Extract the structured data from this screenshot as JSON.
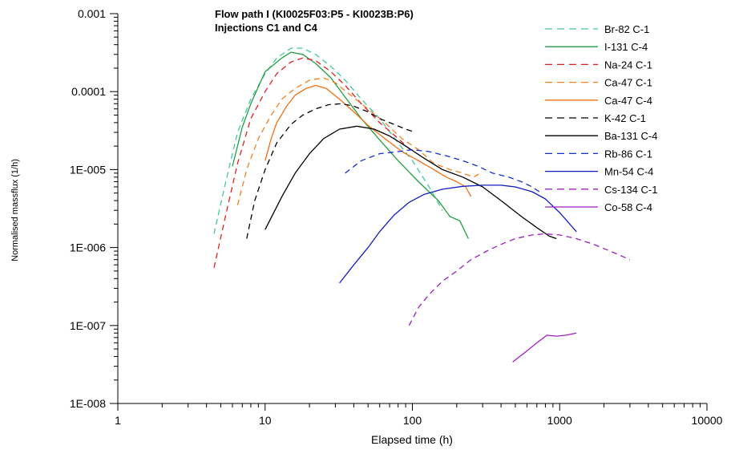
{
  "chart_data": {
    "type": "line",
    "title": "Flow path I (KI0025F03:P5 - KI0023B:P6)",
    "subtitle": "Injections C1 and C4",
    "xlabel": "Elapsed time (h)",
    "ylabel": "Normalised massflux (1/h)",
    "xscale": "log",
    "yscale": "log",
    "xlim": [
      1,
      10000
    ],
    "ylim": [
      1e-08,
      0.001
    ],
    "x_tick_labels": [
      "1",
      "10",
      "100",
      "1000",
      "10000"
    ],
    "y_tick_labels": [
      "1E-008",
      "1E-007",
      "1E-006",
      "1E-005",
      "0.0001",
      "0.001"
    ],
    "legend_position": "top-right",
    "grid": false,
    "series": [
      {
        "name": "Br-82 C-1",
        "color": "#40c8a0",
        "dash": "dashed",
        "x": [
          4.5,
          5.5,
          6.5,
          8,
          10,
          12,
          15,
          18,
          22,
          28,
          35,
          45,
          60,
          80,
          100,
          130,
          160
        ],
        "y": [
          1.5e-06,
          8e-06,
          3e-05,
          8e-05,
          0.00017,
          0.00027,
          0.00036,
          0.00036,
          0.0003,
          0.00021,
          0.00014,
          8e-05,
          4.5e-05,
          2.2e-05,
          1.3e-05,
          6e-06,
          3e-06
        ]
      },
      {
        "name": "I-131 C-4",
        "color": "#20a040",
        "dash": "solid",
        "x": [
          6,
          7,
          8,
          10,
          13,
          15,
          18,
          22,
          28,
          35,
          45,
          60,
          80,
          110,
          150,
          180,
          210,
          240
        ],
        "y": [
          1.1e-05,
          3.5e-05,
          7e-05,
          0.00018,
          0.00027,
          0.00032,
          0.0003,
          0.00023,
          0.00015,
          8.5e-05,
          4.5e-05,
          2.4e-05,
          1.3e-05,
          7e-06,
          4e-06,
          2.5e-06,
          2.2e-06,
          1.3e-06
        ]
      },
      {
        "name": "Na-24 C-1",
        "color": "#e02020",
        "dash": "dashed",
        "x": [
          4.5,
          5.5,
          6.5,
          8,
          10,
          12,
          15,
          18,
          22,
          28,
          35,
          45,
          60,
          80,
          100
        ],
        "y": [
          5.5e-07,
          3e-06,
          1.2e-05,
          4.5e-05,
          0.0001,
          0.00017,
          0.00024,
          0.00027,
          0.00025,
          0.00018,
          0.00012,
          7e-05,
          4e-05,
          2.5e-05,
          1.7e-05
        ]
      },
      {
        "name": "Ca-47 C-1",
        "color": "#f08020",
        "dash": "dashed",
        "x": [
          6.5,
          7.5,
          9,
          11,
          13,
          16,
          20,
          25,
          30,
          38,
          50,
          65,
          85,
          110,
          140,
          180,
          220,
          260,
          290
        ],
        "y": [
          3.5e-06,
          1e-05,
          2.5e-05,
          5e-05,
          8e-05,
          0.00011,
          0.00014,
          0.00015,
          0.00013,
          9e-05,
          6e-05,
          4e-05,
          2.5e-05,
          1.8e-05,
          1.2e-05,
          1e-05,
          9e-06,
          8e-06,
          9e-06
        ]
      },
      {
        "name": "Ca-47 C-4",
        "color": "#f07010",
        "dash": "solid",
        "x": [
          10,
          11,
          12,
          14,
          16,
          19,
          22,
          26,
          32,
          40,
          50,
          65,
          85,
          110,
          140,
          170,
          200,
          230,
          250
        ],
        "y": [
          1.3e-05,
          2.5e-05,
          4e-05,
          6.5e-05,
          9e-05,
          0.00011,
          0.00012,
          0.00011,
          8e-05,
          5.5e-05,
          3.7e-05,
          2.5e-05,
          1.7e-05,
          1.3e-05,
          1e-05,
          8e-06,
          7e-06,
          6e-06,
          4.5e-06
        ]
      },
      {
        "name": "K-42 C-1",
        "color": "#000000",
        "dash": "dashed",
        "x": [
          7.5,
          8.5,
          10,
          12,
          15,
          18,
          22,
          27,
          33,
          40,
          50,
          60,
          75,
          90,
          105
        ],
        "y": [
          1.3e-06,
          4e-06,
          1e-05,
          2.2e-05,
          3.8e-05,
          5e-05,
          6e-05,
          6.8e-05,
          7e-05,
          6.5e-05,
          5.5e-05,
          4.5e-05,
          3.8e-05,
          3.3e-05,
          3e-05
        ]
      },
      {
        "name": "Ba-131 C-4",
        "color": "#000000",
        "dash": "solid",
        "x": [
          10,
          13,
          16,
          20,
          25,
          32,
          42,
          55,
          70,
          90,
          120,
          160,
          220,
          300,
          400,
          550,
          700,
          850,
          950
        ],
        "y": [
          1.7e-06,
          4.5e-06,
          9e-06,
          1.6e-05,
          2.5e-05,
          3.3e-05,
          3.6e-05,
          3.3e-05,
          2.7e-05,
          2e-05,
          1.4e-05,
          1e-05,
          8e-06,
          6e-06,
          4e-06,
          2.5e-06,
          1.8e-06,
          1.4e-06,
          1.3e-06
        ]
      },
      {
        "name": "Rb-86 C-1",
        "color": "#1030d0",
        "dash": "dashed",
        "x": [
          35,
          45,
          60,
          80,
          100,
          130,
          170,
          220,
          280,
          350,
          450,
          550,
          650,
          750
        ],
        "y": [
          9e-06,
          1.3e-05,
          1.6e-05,
          1.7e-05,
          1.8e-05,
          1.7e-05,
          1.5e-05,
          1.3e-05,
          1.1e-05,
          9e-06,
          8e-06,
          7e-06,
          6e-06,
          5e-06
        ]
      },
      {
        "name": "Mn-54 C-4",
        "color": "#1020c0",
        "dash": "solid",
        "x": [
          32,
          40,
          50,
          60,
          75,
          95,
          120,
          160,
          220,
          300,
          400,
          500,
          650,
          800,
          1000,
          1300
        ],
        "y": [
          3.5e-07,
          6e-07,
          1e-06,
          1.6e-06,
          2.6e-06,
          3.8e-06,
          4.8e-06,
          5.6e-06,
          6.1e-06,
          6.3e-06,
          6.3e-06,
          6e-06,
          5.2e-06,
          4.2e-06,
          2.8e-06,
          1.6e-06
        ]
      },
      {
        "name": "Cs-134 C-1",
        "color": "#a020c0",
        "dash": "dashed",
        "x": [
          95,
          110,
          130,
          160,
          200,
          250,
          320,
          400,
          500,
          650,
          800,
          1000,
          1300,
          1700,
          2200,
          3000
        ],
        "y": [
          1e-07,
          1.7e-07,
          2.5e-07,
          3.7e-07,
          5e-07,
          7e-07,
          9e-07,
          1.1e-06,
          1.3e-06,
          1.45e-06,
          1.5e-06,
          1.45e-06,
          1.3e-06,
          1.1e-06,
          9e-07,
          7e-07
        ]
      },
      {
        "name": "Co-58 C-4",
        "color": "#a020c0",
        "dash": "solid",
        "x": [
          480,
          580,
          700,
          820,
          950,
          1100,
          1300
        ],
        "y": [
          3.4e-08,
          4.5e-08,
          6e-08,
          7.5e-08,
          7.3e-08,
          7.5e-08,
          8e-08
        ]
      }
    ]
  }
}
